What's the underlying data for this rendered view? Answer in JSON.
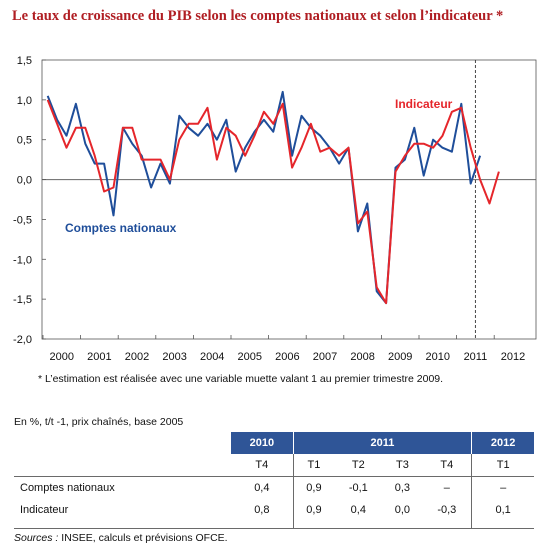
{
  "title": "Le taux de croissance du PIB selon les comptes nationaux et selon l’indicateur *",
  "chart_data": {
    "type": "line",
    "title": "Le taux de croissance du PIB selon les comptes nationaux et selon l’indicateur *",
    "ylim": [
      -2.0,
      1.5
    ],
    "yticks": [
      "1,5",
      "1,0",
      "0,5",
      "0,0",
      "-0,5",
      "-1,0",
      "-1,5",
      "-2,0"
    ],
    "xticks": [
      "2000",
      "2001",
      "2002",
      "2003",
      "2004",
      "2005",
      "2006",
      "2007",
      "2008",
      "2009",
      "2010",
      "2011",
      "2012"
    ],
    "x_start_year": 2000,
    "forecast_divider_after": "2011 T2",
    "grid": false,
    "series": [
      {
        "name": "Comptes nationaux",
        "color": "#1f4e9a",
        "values": [
          1.05,
          0.75,
          0.55,
          0.95,
          0.45,
          0.2,
          0.2,
          -0.45,
          0.65,
          0.45,
          0.3,
          -0.1,
          0.2,
          -0.05,
          0.8,
          0.65,
          0.55,
          0.7,
          0.5,
          0.75,
          0.1,
          0.4,
          0.6,
          0.75,
          0.6,
          1.1,
          0.3,
          0.8,
          0.65,
          0.55,
          0.4,
          0.2,
          0.4,
          -0.65,
          -0.3,
          -1.4,
          -1.55,
          0.15,
          0.25,
          0.65,
          0.05,
          0.5,
          0.4,
          0.35,
          0.95,
          -0.05,
          0.3
        ]
      },
      {
        "name": "Indicateur",
        "color": "#e5262b",
        "values": [
          1.0,
          0.7,
          0.4,
          0.65,
          0.65,
          0.3,
          -0.15,
          -0.1,
          0.65,
          0.65,
          0.25,
          0.25,
          0.25,
          0.0,
          0.5,
          0.7,
          0.7,
          0.9,
          0.25,
          0.65,
          0.55,
          0.3,
          0.55,
          0.85,
          0.7,
          0.95,
          0.15,
          0.4,
          0.7,
          0.35,
          0.4,
          0.3,
          0.4,
          -0.55,
          -0.4,
          -1.35,
          -1.55,
          0.1,
          0.3,
          0.45,
          0.45,
          0.4,
          0.55,
          0.85,
          0.9,
          0.4,
          0.0,
          -0.3,
          0.1
        ]
      }
    ],
    "annotations": {
      "indicateur_label": "Indicateur",
      "comptes_label": "Comptes nationaux"
    }
  },
  "note": "* L’estimation est réalisée avec une variable muette valant 1 au premier trimestre 2009.",
  "table": {
    "unit": "En %, t/t -1, prix chaînés, base 2005",
    "year_headers": [
      "2010",
      "2011",
      "2012"
    ],
    "quarter_headers": [
      "T4",
      "T1",
      "T2",
      "T3",
      "T4",
      "T1"
    ],
    "rows": [
      {
        "label": "Comptes nationaux",
        "values": [
          "0,4",
          "0,9",
          "-0,1",
          "0,3",
          "–",
          "–"
        ]
      },
      {
        "label": "Indicateur",
        "values": [
          "0,8",
          "0,9",
          "0,4",
          "0,0",
          "-0,3",
          "0,1"
        ]
      }
    ]
  },
  "sources_label": "Sources :",
  "sources_text": " INSEE, calculs et prévisions OFCE."
}
